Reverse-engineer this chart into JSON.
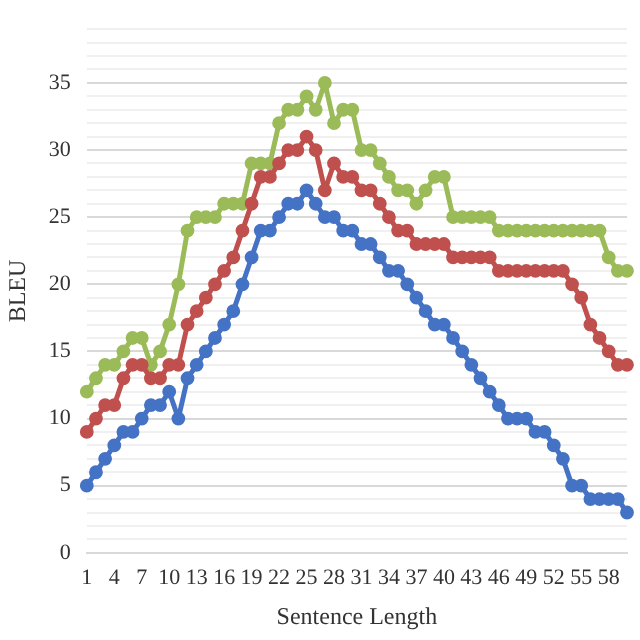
{
  "chart_data": {
    "type": "line",
    "xlabel": "Sentence Length",
    "ylabel": "BLEU",
    "categories": [
      "1",
      null,
      null,
      "4",
      null,
      null,
      "7",
      null,
      null,
      "10",
      null,
      null,
      "13",
      null,
      null,
      "16",
      null,
      null,
      "19",
      null,
      null,
      "22",
      null,
      null,
      "25",
      null,
      null,
      "28",
      null,
      null,
      "31",
      null,
      null,
      "34",
      null,
      null,
      "37",
      null,
      null,
      "40",
      null,
      null,
      "43",
      null,
      null,
      "46",
      null,
      null,
      "49",
      null,
      null,
      "52",
      null,
      null,
      "55",
      null,
      null,
      "58",
      null,
      null
    ],
    "series": [
      {
        "color": "#4472c4",
        "values": [
          5,
          6,
          7,
          8,
          9,
          9,
          10,
          11,
          11,
          12,
          10,
          13,
          14,
          15,
          16,
          17,
          18,
          20,
          22,
          24,
          24,
          25,
          26,
          26,
          27,
          26,
          25,
          25,
          24,
          24,
          23,
          23,
          22,
          21,
          21,
          20,
          19,
          18,
          17,
          17,
          16,
          15,
          14,
          13,
          12,
          11,
          10,
          10,
          10,
          9,
          9,
          8,
          7,
          5,
          5,
          4,
          4,
          4,
          4,
          3
        ]
      },
      {
        "color": "#c0504d",
        "values": [
          9,
          10,
          11,
          11,
          13,
          14,
          14,
          13,
          13,
          14,
          14,
          17,
          18,
          19,
          20,
          21,
          22,
          24,
          26,
          28,
          28,
          29,
          30,
          30,
          31,
          30,
          27,
          29,
          28,
          28,
          27,
          27,
          26,
          25,
          24,
          24,
          23,
          23,
          23,
          23,
          22,
          22,
          22,
          22,
          22,
          21,
          21,
          21,
          21,
          21,
          21,
          21,
          21,
          20,
          19,
          17,
          16,
          15,
          14,
          14
        ]
      },
      {
        "color": "#9bbb59",
        "values": [
          12,
          13,
          14,
          14,
          15,
          16,
          16,
          14,
          15,
          17,
          20,
          24,
          25,
          25,
          25,
          26,
          26,
          26,
          29,
          29,
          29,
          32,
          33,
          33,
          34,
          33,
          35,
          32,
          33,
          33,
          30,
          30,
          29,
          28,
          27,
          27,
          26,
          27,
          28,
          28,
          25,
          25,
          25,
          25,
          25,
          24,
          24,
          24,
          24,
          24,
          24,
          24,
          24,
          24,
          24,
          24,
          24,
          22,
          21,
          21
        ]
      }
    ],
    "ylim": [
      0,
      39
    ],
    "yticks": [
      0,
      {
        "value": 1,
        "label": null
      },
      {
        "value": 2,
        "label": null
      },
      {
        "value": 3,
        "label": null
      },
      {
        "value": 4,
        "label": null
      },
      5,
      {
        "value": 6,
        "label": null
      },
      {
        "value": 7,
        "label": null
      },
      {
        "value": 8,
        "label": null
      },
      {
        "value": 9,
        "label": null
      },
      10,
      {
        "value": 11,
        "label": null
      },
      {
        "value": 12,
        "label": null
      },
      {
        "value": 13,
        "label": null
      },
      {
        "value": 14,
        "label": null
      },
      15,
      {
        "value": 16,
        "label": null
      },
      {
        "value": 17,
        "label": null
      },
      {
        "value": 18,
        "label": null
      },
      {
        "value": 19,
        "label": null
      },
      20,
      {
        "value": 21,
        "label": null
      },
      {
        "value": 22,
        "label": null
      },
      {
        "value": 23,
        "label": null
      },
      {
        "value": 24,
        "label": null
      },
      25,
      {
        "value": 26,
        "label": null
      },
      {
        "value": 27,
        "label": null
      },
      {
        "value": 28,
        "label": null
      },
      {
        "value": 29,
        "label": null
      },
      30,
      {
        "value": 31,
        "label": null
      },
      {
        "value": 32,
        "label": null
      },
      {
        "value": 33,
        "label": null
      },
      {
        "value": 34,
        "label": null
      },
      35,
      {
        "value": 36,
        "label": null
      },
      {
        "value": 37,
        "label": null
      },
      {
        "value": 38,
        "label": null
      },
      {
        "value": 39,
        "label": null
      }
    ],
    "grid": "y",
    "legend": false,
    "marker": "circle",
    "line_style": "solid"
  }
}
